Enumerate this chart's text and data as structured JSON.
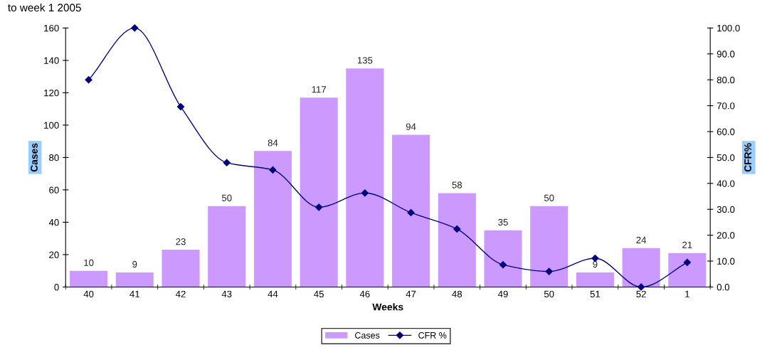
{
  "chart_data": {
    "type": "bar",
    "xlabel": "Weeks",
    "ylabel": "Cases",
    "y2label": "CFR%",
    "annotations": [
      "to week 1 2005"
    ],
    "categories": [
      "40",
      "41",
      "42",
      "43",
      "44",
      "45",
      "46",
      "47",
      "48",
      "49",
      "50",
      "51",
      "52",
      "1"
    ],
    "series": [
      {
        "name": "Cases",
        "color": "#cc99ff",
        "values": [
          10,
          9,
          23,
          50,
          84,
          117,
          135,
          94,
          58,
          35,
          50,
          9,
          24,
          21
        ],
        "value_labels": [
          "10",
          "9",
          "23",
          "50",
          "84",
          "117",
          "135",
          "94",
          "58",
          "35",
          "50",
          "9",
          "24",
          "21"
        ]
      },
      {
        "name": "CFR %",
        "type": "line",
        "axis": "y2",
        "color": "#000080",
        "marker": "diamond",
        "values": [
          80.0,
          100.0,
          69.6,
          48.0,
          45.2,
          30.8,
          36.3,
          28.7,
          22.4,
          8.6,
          6.0,
          11.1,
          0.0,
          9.5
        ]
      }
    ],
    "ylim": [
      0,
      160
    ],
    "yticks": [
      0,
      20,
      40,
      60,
      80,
      100,
      120,
      140,
      160
    ],
    "y2lim": [
      0,
      100
    ],
    "y2ticks": [
      {
        "value": 0,
        "label": "0.0"
      },
      {
        "value": 10,
        "label": "10.0"
      },
      {
        "value": 20,
        "label": "20.0"
      },
      {
        "value": 30,
        "label": "30.0"
      },
      {
        "value": 40,
        "label": "40.0"
      },
      {
        "value": 50,
        "label": "50.0"
      },
      {
        "value": 60,
        "label": "60.0"
      },
      {
        "value": 70,
        "label": "70.0"
      },
      {
        "value": 80,
        "label": "80.0"
      },
      {
        "value": 90,
        "label": "90.0"
      },
      {
        "value": 100,
        "label": "100.0"
      }
    ],
    "grid": false,
    "legend": "bottom"
  }
}
